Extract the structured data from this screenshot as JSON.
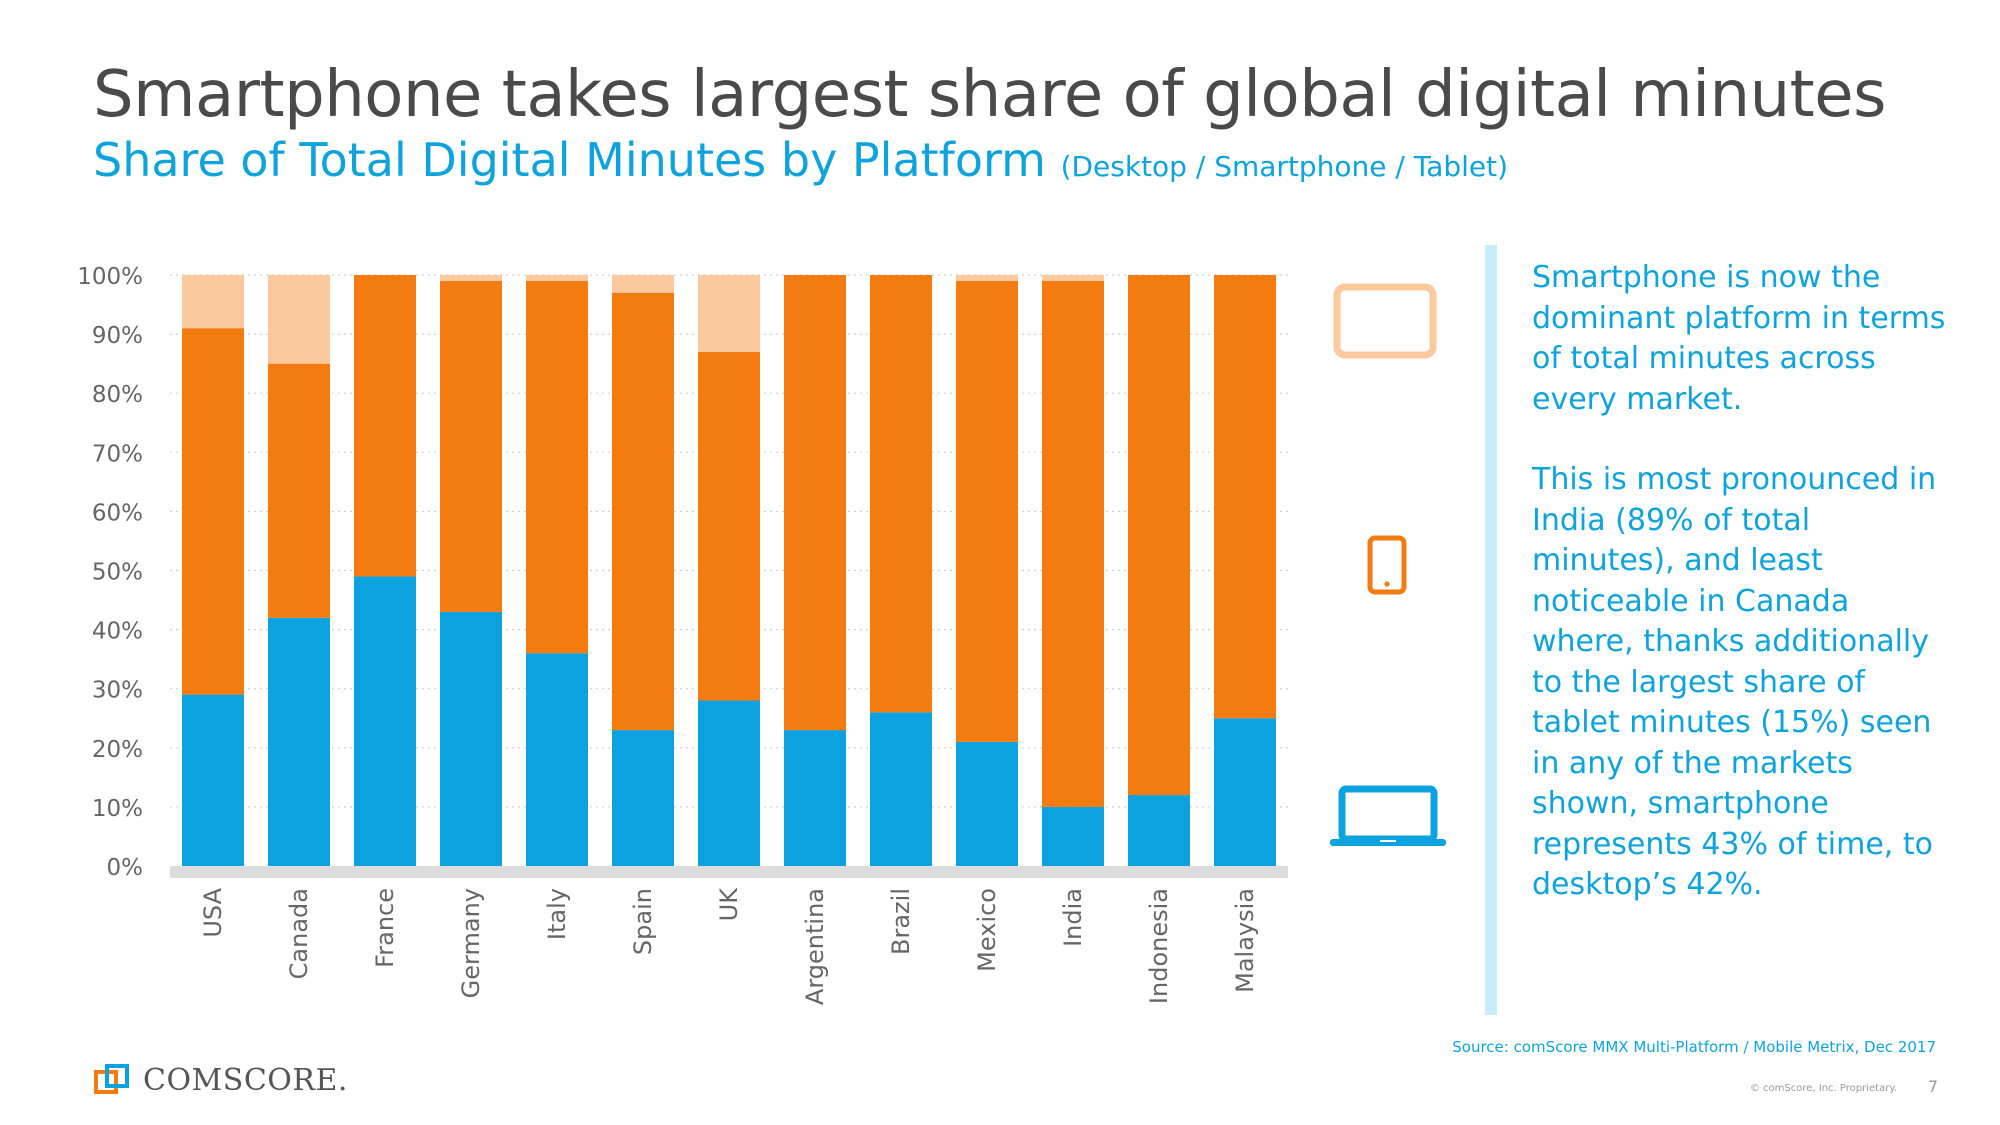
{
  "slide": {
    "title": "Smartphone takes largest share of global digital minutes",
    "subtitle": "Share of Total Digital Minutes by Platform",
    "subtitle_note": "(Desktop / Smartphone / Tablet)",
    "callout_p1": "Smartphone is now the dominant platform in terms of total minutes across every market.",
    "callout_p2": "This is most pronounced in India (89% of total minutes), and least noticeable in Canada where, thanks additionally to the largest share of tablet minutes (15%) seen in any of the markets shown, smartphone represents 43% of time, to desktop’s 42%.",
    "source": "Source: comScore MMX Multi-Platform / Mobile Metrix, Dec 2017",
    "copyright": "© comScore, Inc. Proprietary.",
    "page_number": "7",
    "logo_text": "COMSCORE."
  },
  "colors": {
    "desktop": "#0ba2df",
    "smartphone": "#f47b10",
    "tablet": "#fbc99e",
    "title": "#4a4a4a",
    "accent": "#0ea3dc"
  },
  "icons": {
    "tablet": "tablet-icon",
    "smartphone": "smartphone-icon",
    "desktop": "laptop-icon"
  },
  "chart_data": {
    "type": "bar",
    "stacked": true,
    "categories": [
      "USA",
      "Canada",
      "France",
      "Germany",
      "Italy",
      "Spain",
      "UK",
      "Argentina",
      "Brazil",
      "Mexico",
      "India",
      "Indonesia",
      "Malaysia"
    ],
    "series": [
      {
        "name": "Desktop",
        "values": [
          29,
          42,
          49,
          43,
          36,
          23,
          28,
          23,
          26,
          21,
          10,
          12,
          25
        ]
      },
      {
        "name": "Smartphone",
        "values": [
          62,
          43,
          51,
          56,
          63,
          74,
          59,
          77,
          74,
          78,
          89,
          88,
          75
        ]
      },
      {
        "name": "Tablet",
        "values": [
          9,
          15,
          0,
          1,
          1,
          3,
          13,
          0,
          0,
          1,
          1,
          0,
          0
        ]
      }
    ],
    "ylim": [
      0,
      100
    ],
    "yticks": [
      "0%",
      "10%",
      "20%",
      "30%",
      "40%",
      "50%",
      "60%",
      "70%",
      "80%",
      "90%",
      "100%"
    ],
    "grid": true,
    "legend": "icons at right: tablet (top), smartphone (middle), desktop (bottom)"
  }
}
